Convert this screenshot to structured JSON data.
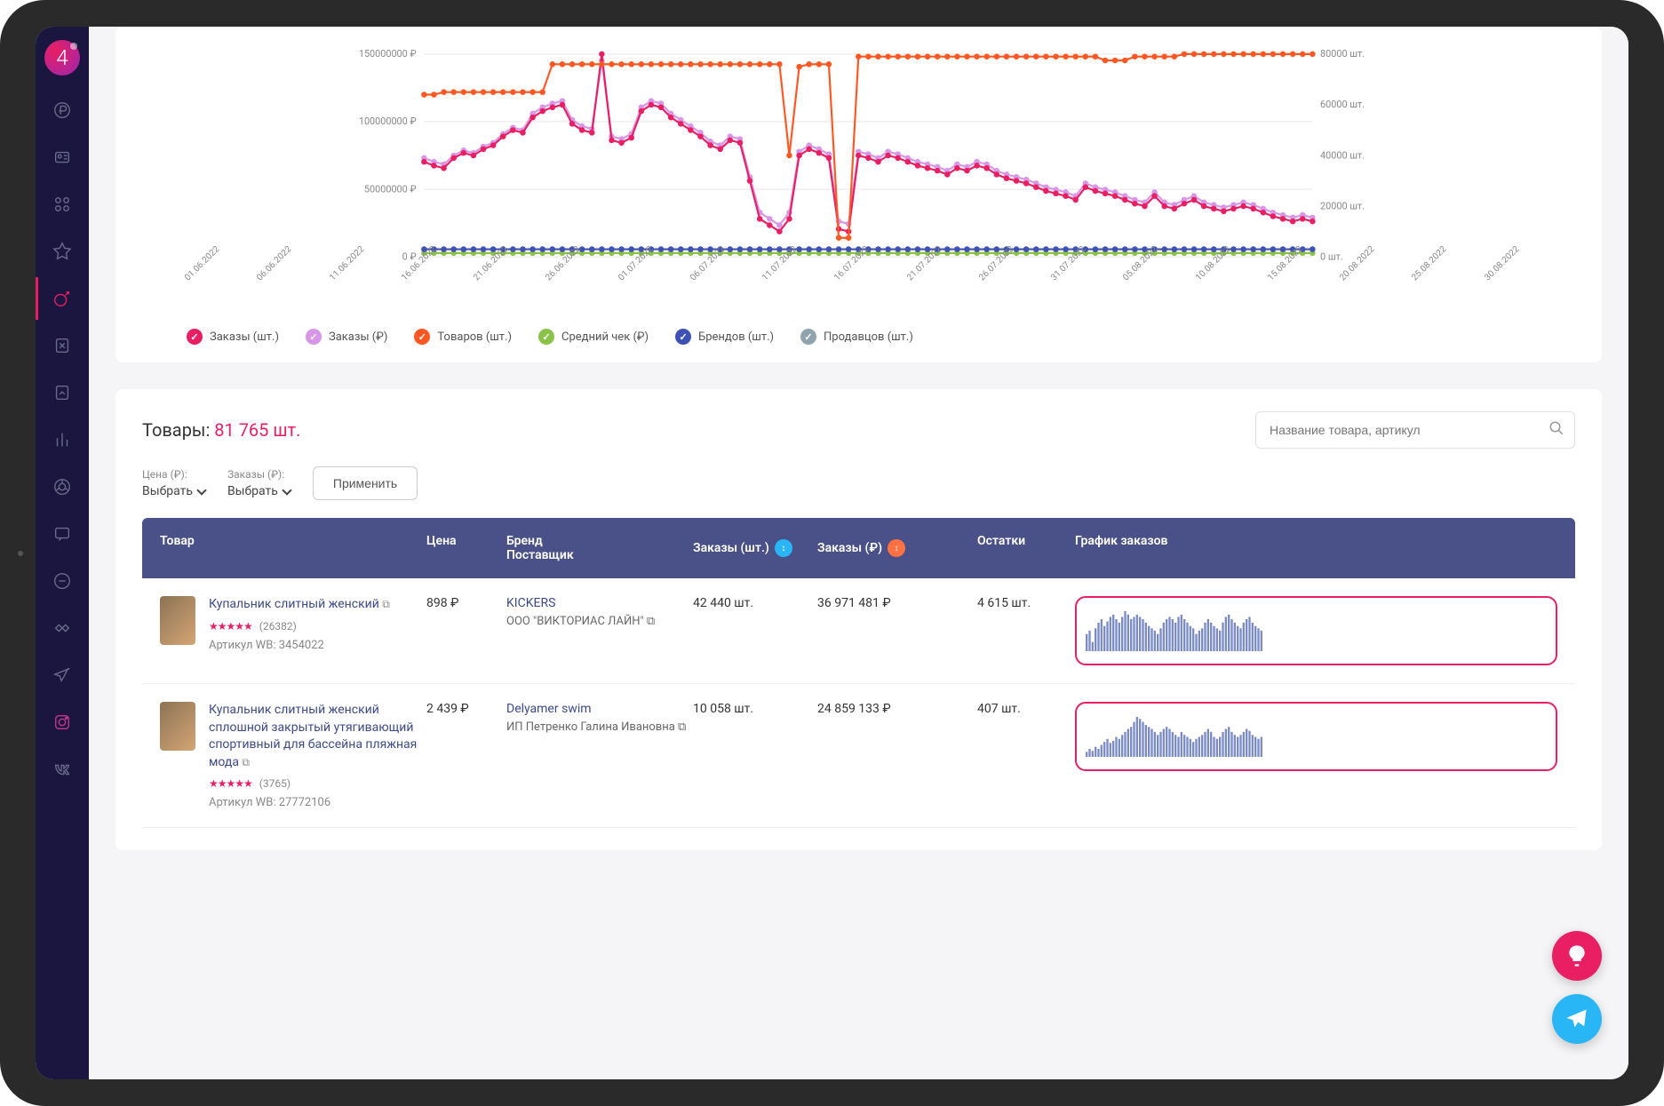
{
  "sidebar": {
    "logo_text": "4",
    "icons": [
      "ruble-icon",
      "id-icon",
      "apps-icon",
      "star-icon",
      "analytics-icon",
      "xls-icon",
      "report-icon",
      "bars-icon",
      "chrome-icon",
      "chat-icon",
      "message-icon",
      "handshake-icon",
      "telegram-icon",
      "instagram-icon",
      "vk-icon"
    ],
    "active_index": 4
  },
  "chart": {
    "type": "line",
    "colors": {
      "orders_qty": "#e91e63",
      "orders_rub": "#d896e8",
      "goods": "#ff5722",
      "avg_check": "#8bc34a",
      "brands": "#3f51b5",
      "sellers": "#90a4ae",
      "grid": "#e8e8e8",
      "axis_text": "#888888",
      "background": "#ffffff"
    },
    "fontsize_axis": 10,
    "fontsize_legend": 13,
    "y_left": {
      "label_suffix": " ₽",
      "ticks": [
        "0 ₽",
        "50000000 ₽",
        "100000000 ₽",
        "150000000 ₽"
      ],
      "lim": [
        0,
        160000000
      ]
    },
    "y_right": {
      "label_suffix": " шт.",
      "ticks": [
        "0 шт.",
        "20000 шт.",
        "40000 шт.",
        "60000 шт.",
        "80000 шт."
      ],
      "lim": [
        0,
        85000
      ]
    },
    "x_categories": [
      "01.06.2022",
      "06.06.2022",
      "11.06.2022",
      "16.06.2022",
      "21.06.2022",
      "26.06.2022",
      "01.07.2022",
      "06.07.2022",
      "11.07.2022",
      "16.07.2022",
      "21.07.2022",
      "26.07.2022",
      "31.07.2022",
      "05.08.2022",
      "10.08.2022",
      "15.08.2022",
      "20.08.2022",
      "25.08.2022",
      "30.08.2022"
    ],
    "series": {
      "orders_qty": [
        75,
        72,
        70,
        78,
        82,
        80,
        85,
        88,
        95,
        100,
        98,
        110,
        115,
        118,
        120,
        105,
        100,
        98,
        160,
        92,
        90,
        94,
        115,
        120,
        118,
        110,
        105,
        100,
        95,
        88,
        85,
        92,
        90,
        60,
        30,
        25,
        20,
        30,
        80,
        85,
        82,
        78,
        22,
        20,
        80,
        78,
        75,
        80,
        78,
        75,
        72,
        70,
        68,
        65,
        70,
        68,
        72,
        70,
        65,
        62,
        60,
        58,
        55,
        52,
        50,
        48,
        45,
        55,
        52,
        50,
        48,
        45,
        42,
        40,
        48,
        40,
        38,
        42,
        45,
        40,
        38,
        36,
        38,
        40,
        38,
        35,
        32,
        30,
        28,
        30,
        28
      ],
      "orders_rub": [
        78,
        75,
        73,
        80,
        84,
        82,
        87,
        90,
        97,
        102,
        100,
        113,
        118,
        121,
        123,
        108,
        103,
        101,
        155,
        95,
        93,
        97,
        118,
        123,
        121,
        113,
        108,
        103,
        98,
        91,
        88,
        95,
        93,
        63,
        35,
        30,
        25,
        35,
        83,
        88,
        85,
        81,
        28,
        26,
        83,
        81,
        78,
        83,
        81,
        78,
        75,
        73,
        71,
        68,
        73,
        71,
        75,
        73,
        68,
        65,
        63,
        61,
        58,
        55,
        53,
        51,
        48,
        58,
        55,
        53,
        51,
        48,
        45,
        43,
        51,
        43,
        41,
        45,
        48,
        43,
        41,
        39,
        41,
        43,
        41,
        38,
        35,
        33,
        31,
        33,
        31
      ],
      "goods": [
        128,
        128,
        130,
        130,
        130,
        130,
        130,
        130,
        130,
        130,
        130,
        130,
        130,
        152,
        152,
        152,
        152,
        152,
        152,
        152,
        152,
        152,
        152,
        152,
        152,
        152,
        152,
        152,
        152,
        152,
        152,
        152,
        152,
        152,
        152,
        152,
        152,
        80,
        150,
        152,
        152,
        152,
        15,
        15,
        158,
        158,
        158,
        158,
        158,
        158,
        158,
        158,
        158,
        158,
        158,
        158,
        158,
        158,
        158,
        158,
        158,
        158,
        158,
        158,
        158,
        158,
        158,
        158,
        158,
        155,
        155,
        155,
        158,
        158,
        158,
        158,
        158,
        160,
        160,
        160,
        160,
        160,
        160,
        160,
        160,
        160,
        160,
        160,
        160,
        160,
        160
      ],
      "avg_check": [
        3,
        3,
        3,
        3,
        3,
        3,
        3,
        3,
        3,
        3,
        3,
        3,
        3,
        3,
        3,
        3,
        3,
        3,
        3,
        3,
        3,
        3,
        3,
        3,
        3,
        3,
        3,
        3,
        3,
        3,
        3,
        3,
        3,
        3,
        3,
        3,
        3,
        3,
        3,
        3,
        3,
        3,
        3,
        3,
        3,
        3,
        3,
        3,
        3,
        3,
        3,
        3,
        3,
        3,
        3,
        3,
        3,
        3,
        3,
        3,
        3,
        3,
        3,
        3,
        3,
        3,
        3,
        3,
        3,
        3,
        3,
        3,
        3,
        3,
        3,
        3,
        3,
        3,
        3,
        3,
        3,
        3,
        3,
        3,
        3,
        3,
        3,
        3,
        3,
        3,
        3
      ],
      "brands": [
        6,
        6,
        6,
        6,
        6,
        6,
        6,
        6,
        6,
        6,
        6,
        6,
        6,
        6,
        6,
        6,
        6,
        6,
        6,
        6,
        6,
        6,
        6,
        6,
        6,
        6,
        6,
        6,
        6,
        6,
        6,
        6,
        6,
        6,
        6,
        6,
        6,
        6,
        6,
        6,
        6,
        6,
        6,
        6,
        6,
        6,
        6,
        6,
        6,
        6,
        6,
        6,
        6,
        6,
        6,
        6,
        6,
        6,
        6,
        6,
        6,
        6,
        6,
        6,
        6,
        6,
        6,
        6,
        6,
        6,
        6,
        6,
        6,
        6,
        6,
        6,
        6,
        6,
        6,
        6,
        6,
        6,
        6,
        6,
        6,
        6,
        6,
        6,
        6,
        6,
        6
      ]
    },
    "legend": [
      {
        "label": "Заказы (шт.)",
        "color": "#e91e63"
      },
      {
        "label": "Заказы (₽)",
        "color": "#d896e8"
      },
      {
        "label": "Товаров (шт.)",
        "color": "#ff5722"
      },
      {
        "label": "Средний чек (₽)",
        "color": "#8bc34a"
      },
      {
        "label": "Брендов (шт.)",
        "color": "#3f51b5"
      },
      {
        "label": "Продавцов (шт.)",
        "color": "#90a4ae"
      }
    ]
  },
  "products": {
    "title_prefix": "Товары: ",
    "count": "81 765 шт.",
    "search_placeholder": "Название товара, артикул",
    "filters": {
      "price_label": "Цена (₽):",
      "price_value": "Выбрать",
      "orders_label": "Заказы (₽):",
      "orders_value": "Выбрать",
      "apply_label": "Применить"
    },
    "columns": {
      "product": "Товар",
      "price": "Цена",
      "brand_line1": "Бренд",
      "brand_line2": "Поставщик",
      "orders_qty": "Заказы (шт.)",
      "orders_rub": "Заказы (₽)",
      "stock": "Остатки",
      "spark": "График заказов"
    },
    "sort_badges": {
      "orders_qty_color": "#29b6f6",
      "orders_rub_color": "#ff7043"
    },
    "rows": [
      {
        "name": "Купальник слитный женский",
        "stars": "★★★★★",
        "reviews": "(26382)",
        "sku_prefix": "Артикул WB: ",
        "sku": "3454022",
        "price": "898 ₽",
        "brand": "KICKERS",
        "supplier": "ООО \"ВИКТОРИАС ЛАЙН\"",
        "orders_qty": "42 440 шт.",
        "orders_rub": "36 971 481 ₽",
        "stock": "4 615 шт.",
        "spark": [
          15,
          18,
          8,
          20,
          25,
          28,
          22,
          26,
          30,
          32,
          28,
          25,
          30,
          35,
          32,
          28,
          30,
          32,
          30,
          28,
          25,
          22,
          20,
          18,
          15,
          20,
          25,
          28,
          30,
          28,
          25,
          30,
          32,
          28,
          25,
          22,
          20,
          15,
          18,
          20,
          25,
          28,
          25,
          22,
          20,
          18,
          25,
          30,
          32,
          28,
          25,
          22,
          20,
          25,
          28,
          30,
          25,
          22,
          20,
          18
        ]
      },
      {
        "name": "Купальник слитный женский сплошной закрытый утягивающий спортивный для бассейна пляжная мода",
        "stars": "★★★★★",
        "reviews": "(3765)",
        "sku_prefix": "Артикул WB: ",
        "sku": "27772106",
        "price": "2 439 ₽",
        "brand": "Delyamer swim",
        "supplier": "ИП Петренко Галина Ивановна",
        "orders_qty": "10 058 шт.",
        "orders_rub": "24 859 133 ₽",
        "stock": "407 шт.",
        "spark": [
          5,
          8,
          6,
          10,
          8,
          12,
          15,
          18,
          14,
          16,
          20,
          18,
          22,
          25,
          28,
          30,
          35,
          40,
          38,
          35,
          32,
          30,
          28,
          25,
          22,
          25,
          28,
          30,
          28,
          25,
          22,
          20,
          25,
          22,
          20,
          18,
          15,
          18,
          20,
          22,
          25,
          28,
          25,
          20,
          18,
          20,
          25,
          28,
          30,
          25,
          22,
          20,
          22,
          25,
          28,
          26,
          22,
          20,
          18,
          20
        ]
      }
    ]
  },
  "fabs": {
    "idea_color": "#e91e63",
    "telegram_color": "#29b6f6"
  }
}
